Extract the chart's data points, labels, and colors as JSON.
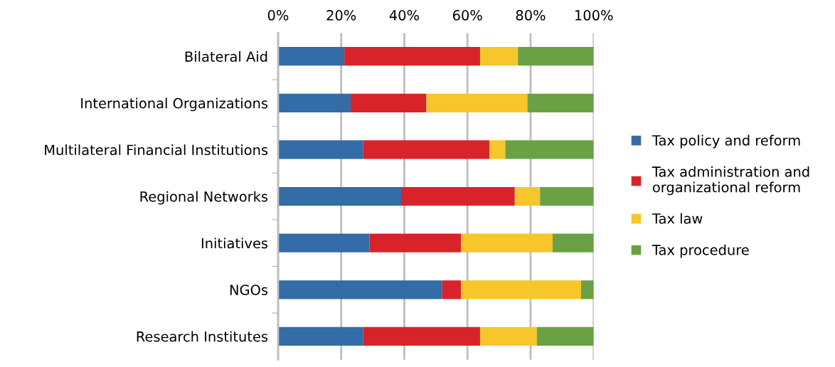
{
  "chart_data": {
    "type": "bar",
    "orientation": "horizontal",
    "stacked": true,
    "categories": [
      "Bilateral Aid",
      "International Organizations",
      "Multilateral Financial Institutions",
      "Regional Networks",
      "Initiatives",
      "NGOs",
      "Research Institutes"
    ],
    "series": [
      {
        "name": "Tax policy and reform",
        "color": "#336ca6",
        "values": [
          21,
          23,
          27,
          39,
          29,
          52,
          27
        ]
      },
      {
        "name": "Tax administration and\norganizational reform",
        "color": "#d8232a",
        "values": [
          43,
          24,
          40,
          36,
          29,
          6,
          37
        ]
      },
      {
        "name": "Tax law",
        "color": "#f6c62a",
        "values": [
          12,
          32,
          5,
          8,
          29,
          38,
          18
        ]
      },
      {
        "name": "Tax procedure",
        "color": "#6aa144",
        "values": [
          24,
          21,
          28,
          17,
          13,
          4,
          18
        ]
      }
    ],
    "xlim": [
      0,
      100
    ],
    "xticks": [
      {
        "value": 0,
        "label": "0%"
      },
      {
        "value": 20,
        "label": "20%"
      },
      {
        "value": 40,
        "label": "40%"
      },
      {
        "value": 60,
        "label": "60%"
      },
      {
        "value": 80,
        "label": "80%"
      },
      {
        "value": 100,
        "label": "100%"
      }
    ],
    "grid": "x",
    "legend": "right"
  }
}
